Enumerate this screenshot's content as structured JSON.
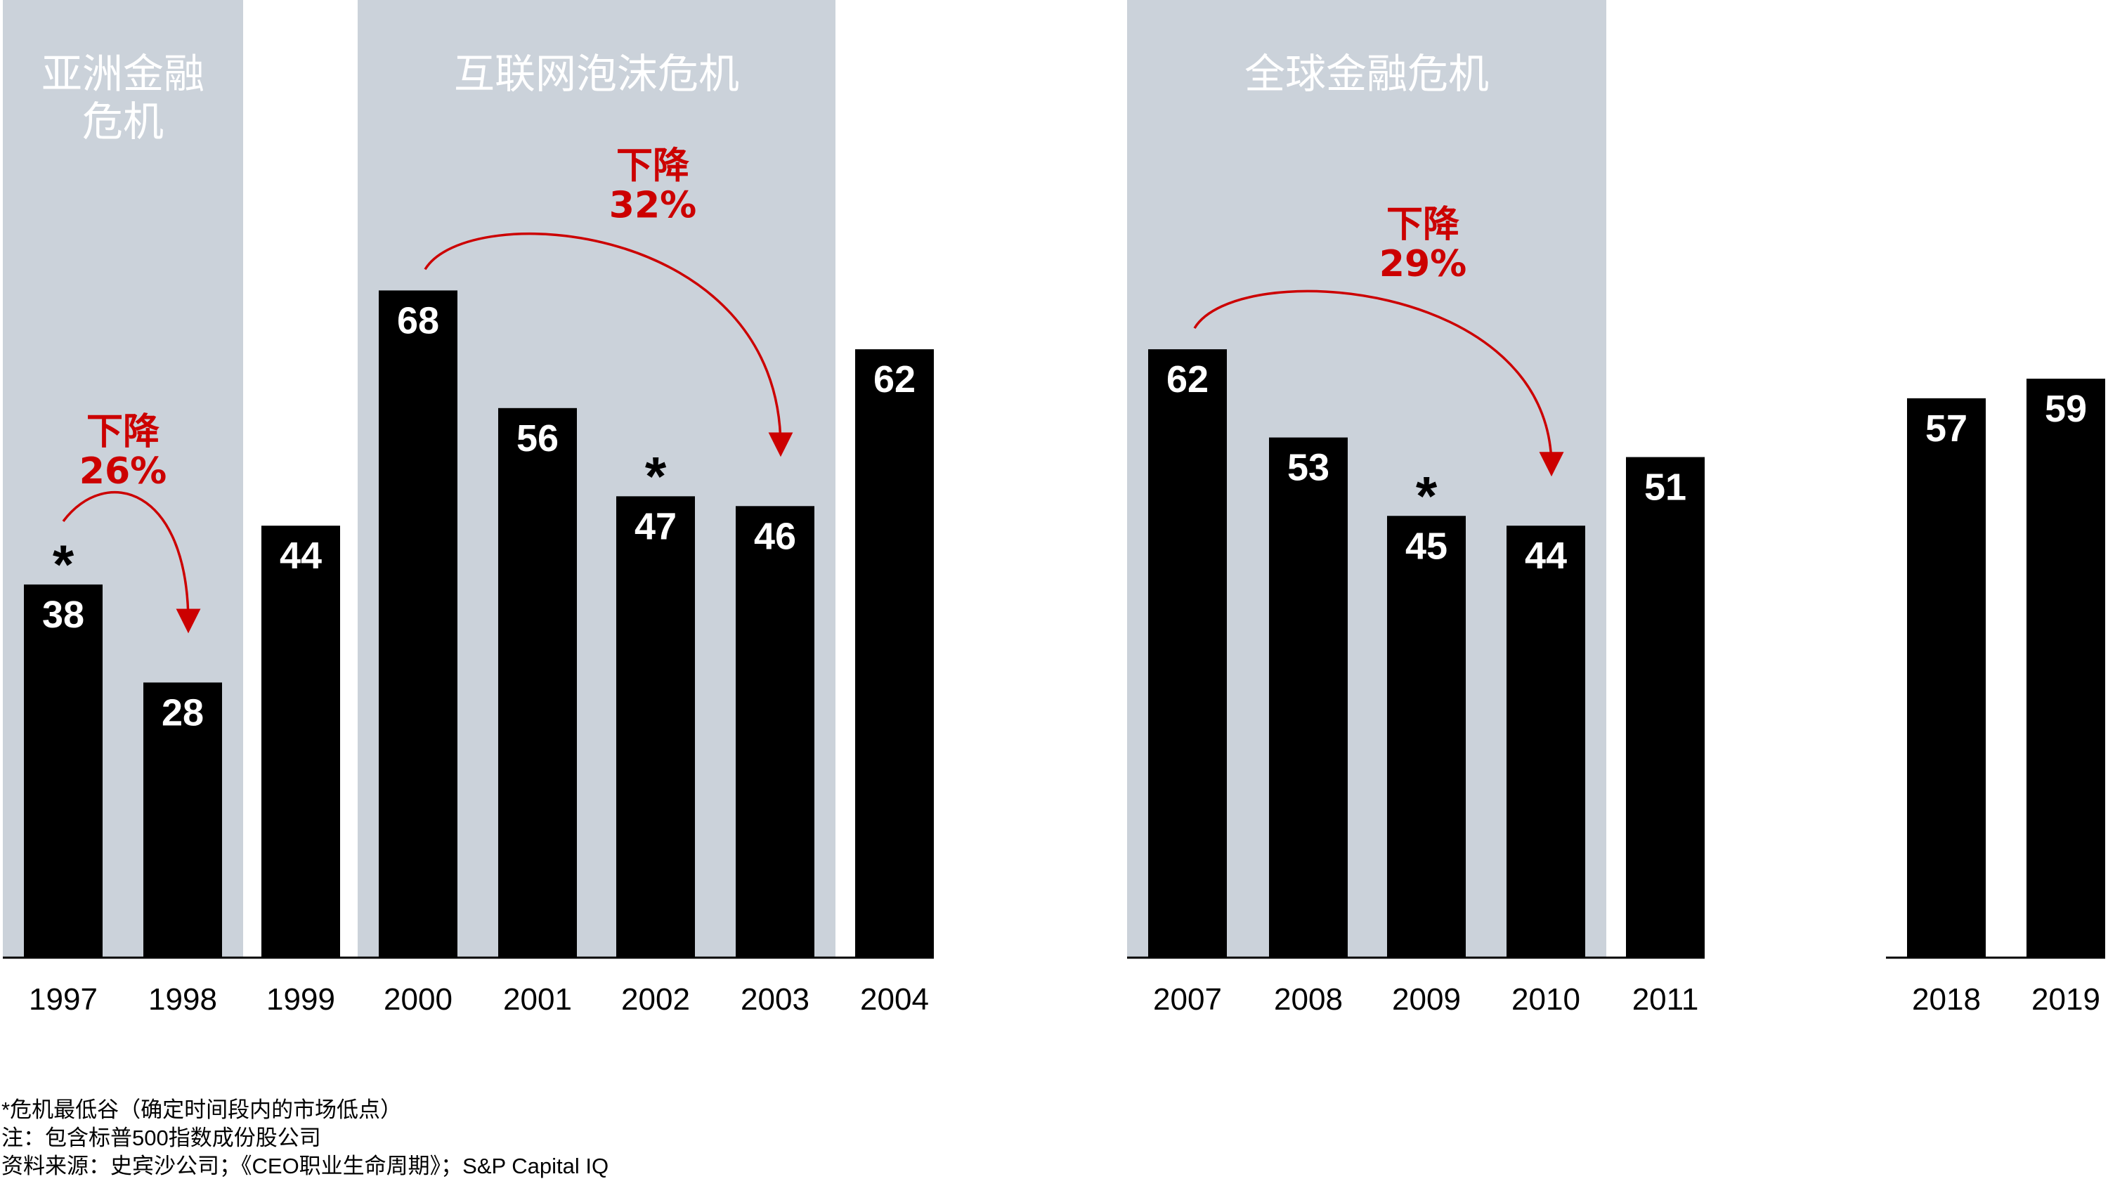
{
  "chart_data": {
    "type": "bar",
    "categories": [
      "1997",
      "1998",
      "1999",
      "2000",
      "2001",
      "2002",
      "2003",
      "2004",
      "2007",
      "2008",
      "2009",
      "2010",
      "2011",
      "2018",
      "2019"
    ],
    "values": [
      38,
      28,
      44,
      68,
      56,
      47,
      46,
      62,
      62,
      53,
      45,
      44,
      51,
      57,
      59
    ],
    "crisis_lows": [
      "1997",
      "2002",
      "2009"
    ],
    "low_marker": "*",
    "crisis_periods": [
      {
        "label_lines": [
          "亚洲金融",
          "危机"
        ],
        "start": "1997",
        "end": "1998"
      },
      {
        "label_lines": [
          "互联网泡沫危机"
        ],
        "start": "2000",
        "end": "2003"
      },
      {
        "label_lines": [
          "全球金融危机"
        ],
        "start": "2007",
        "end": "2010"
      }
    ],
    "drops": [
      {
        "from": "1997",
        "to": "1998",
        "label_lines": [
          "下降",
          "26%"
        ]
      },
      {
        "from": "2000",
        "to": "2003",
        "label_lines": [
          "下降",
          "32%"
        ]
      },
      {
        "from": "2007",
        "to": "2010",
        "label_lines": [
          "下降",
          "29%"
        ]
      }
    ],
    "colors": {
      "bar": "#000000",
      "bar_label": "#ffffff",
      "shade": "#cbd2da",
      "shade_label": "#ffffff",
      "drop": "#cc0000"
    }
  },
  "notes": {
    "footnote": "*危机最低谷（确定时间段内的市场低点）",
    "note": "注：包含标普500指数成份股公司",
    "source": "资料来源：史宾沙公司；《CEO职业生命周期》；S&P Capital IQ"
  }
}
